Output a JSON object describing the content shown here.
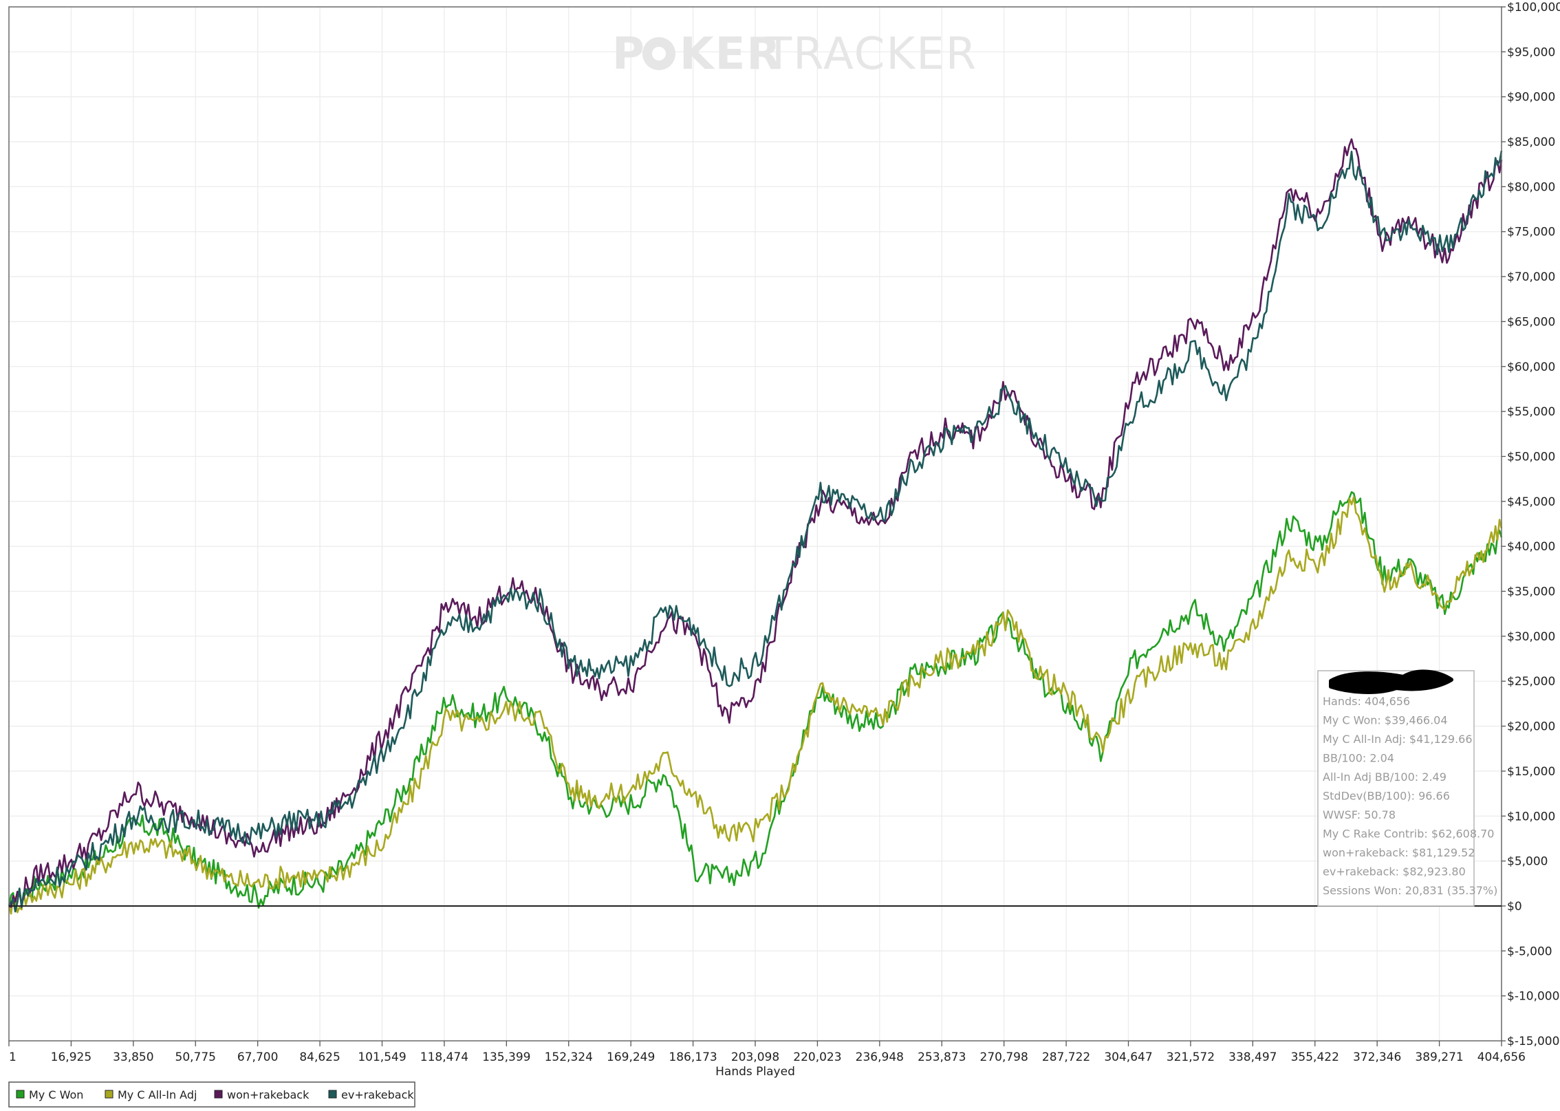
{
  "watermark": {
    "part1": "P",
    "part2": "KER",
    "part3": "TRACKER"
  },
  "chart_data": {
    "type": "line",
    "xlabel": "Hands Played",
    "ylabel": "",
    "xlim": [
      1,
      404656
    ],
    "ylim": [
      -15000,
      100000
    ],
    "grid": true,
    "legend_position": "bottom-left",
    "x_ticks": [
      "1",
      "16,925",
      "33,850",
      "50,775",
      "67,700",
      "84,625",
      "101,549",
      "118,474",
      "135,399",
      "152,324",
      "169,249",
      "186,173",
      "203,098",
      "220,023",
      "236,948",
      "253,873",
      "270,798",
      "287,722",
      "304,647",
      "321,572",
      "338,497",
      "355,422",
      "372,346",
      "389,271",
      "404,656"
    ],
    "y_ticks": [
      "$100,000",
      "$95,000",
      "$90,000",
      "$85,000",
      "$80,000",
      "$75,000",
      "$70,000",
      "$65,000",
      "$60,000",
      "$55,000",
      "$50,000",
      "$45,000",
      "$40,000",
      "$35,000",
      "$30,000",
      "$25,000",
      "$20,000",
      "$15,000",
      "$10,000",
      "$5,000",
      "$0",
      "$-5,000",
      "$-10,000",
      "$-15,000"
    ],
    "x": [
      1,
      8000,
      16925,
      25000,
      33850,
      42000,
      50775,
      59000,
      67700,
      76000,
      84625,
      93000,
      101549,
      110000,
      118474,
      127000,
      135399,
      144000,
      152324,
      160000,
      169249,
      178000,
      186173,
      194000,
      203098,
      212000,
      220023,
      228000,
      236948,
      245000,
      253873,
      262000,
      270798,
      279000,
      287722,
      296000,
      304647,
      313000,
      321572,
      330000,
      338497,
      347000,
      355422,
      364000,
      372346,
      380000,
      389271,
      397000,
      404656
    ],
    "series": [
      {
        "name": "My C Won",
        "color": "#22a022",
        "values": [
          0,
          2500,
          3500,
          5500,
          9000,
          8500,
          5000,
          3000,
          1000,
          2500,
          2500,
          5000,
          9500,
          15000,
          23000,
          21000,
          23500,
          20000,
          12000,
          11000,
          11500,
          15000,
          4000,
          3000,
          5000,
          15000,
          24000,
          21000,
          20000,
          26000,
          27000,
          28000,
          32000,
          25000,
          22000,
          17000,
          27000,
          31000,
          33000,
          29000,
          35000,
          43000,
          40000,
          47000,
          37000,
          38000,
          33000,
          38000,
          41000
        ]
      },
      {
        "name": "My C All-In Adj",
        "color": "#a8a820",
        "values": [
          0,
          1500,
          2500,
          4500,
          7000,
          6500,
          5000,
          3000,
          2500,
          3500,
          3000,
          4500,
          7000,
          13000,
          21000,
          20000,
          22000,
          21000,
          13000,
          12000,
          13000,
          16500,
          12000,
          8000,
          8500,
          14000,
          24000,
          22000,
          21000,
          25000,
          27500,
          28000,
          32000,
          26000,
          23000,
          18000,
          24000,
          27000,
          29000,
          27000,
          32000,
          39000,
          38000,
          45000,
          36000,
          37000,
          34000,
          38000,
          42000
        ]
      },
      {
        "name": "won+rakeback",
        "color": "#5a1a5a",
        "values": [
          0,
          3500,
          5000,
          8000,
          13000,
          11000,
          10000,
          7500,
          6500,
          8500,
          9000,
          13000,
          19000,
          25000,
          33500,
          32000,
          35500,
          34000,
          26000,
          24000,
          25000,
          32000,
          30000,
          21000,
          24000,
          37000,
          45000,
          44000,
          42000,
          50000,
          53000,
          52000,
          58000,
          51000,
          47000,
          45000,
          58000,
          61000,
          65000,
          60000,
          66000,
          80000,
          77000,
          85000,
          74000,
          76000,
          72000,
          78000,
          83000
        ]
      },
      {
        "name": "ev+rakeback",
        "color": "#1e5a5a",
        "values": [
          0,
          2500,
          4000,
          6500,
          10000,
          9500,
          9500,
          8500,
          8000,
          9500,
          9500,
          12000,
          17000,
          23000,
          31000,
          31500,
          34500,
          34000,
          27000,
          26000,
          27000,
          33000,
          31000,
          25500,
          27000,
          37000,
          46000,
          44500,
          43000,
          49000,
          52000,
          53000,
          57000,
          52000,
          48000,
          44500,
          55000,
          58000,
          62000,
          57000,
          63000,
          78000,
          76000,
          83000,
          75000,
          75500,
          73000,
          78000,
          84000
        ]
      }
    ]
  },
  "stats_box": {
    "lines": [
      "Hands: 404,656",
      "My C Won: $39,466.04",
      "My C All-In Adj: $41,129.66",
      "BB/100: 2.04",
      "All-In Adj BB/100: 2.49",
      "StdDev(BB/100): 96.66",
      "WWSF: 50.78",
      "My C Rake Contrib: $62,608.70",
      "won+rakeback: $81,129.52",
      "ev+rakeback: $82,923.80",
      "Sessions Won: 20,831 (35.37%)"
    ]
  }
}
